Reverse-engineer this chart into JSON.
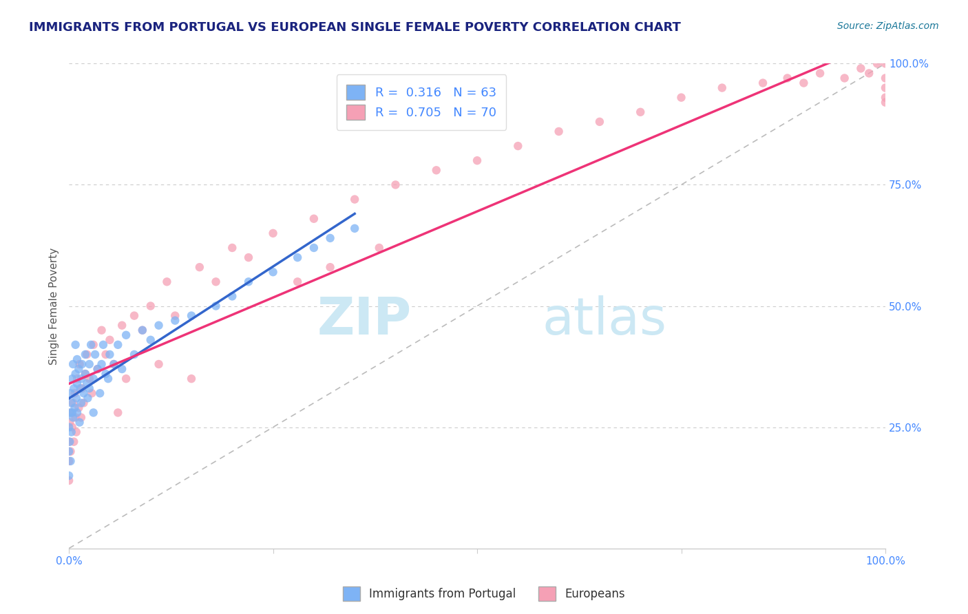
{
  "title": "IMMIGRANTS FROM PORTUGAL VS EUROPEAN SINGLE FEMALE POVERTY CORRELATION CHART",
  "source": "Source: ZipAtlas.com",
  "ylabel": "Single Female Poverty",
  "legend_label1": "Immigrants from Portugal",
  "legend_label2": "Europeans",
  "R1": 0.316,
  "N1": 63,
  "R2": 0.705,
  "N2": 70,
  "color1": "#7eb3f5",
  "color2": "#f5a0b5",
  "regression_color1": "#3366cc",
  "regression_color2": "#ee3377",
  "title_color": "#1a237e",
  "source_color": "#1a7799",
  "axis_label_color": "#4488ff",
  "watermark_color": "#cce8f4",
  "background_color": "#ffffff",
  "blue_x": [
    0.0,
    0.0,
    0.0,
    0.001,
    0.001,
    0.002,
    0.002,
    0.003,
    0.003,
    0.004,
    0.004,
    0.005,
    0.005,
    0.006,
    0.007,
    0.008,
    0.008,
    0.009,
    0.01,
    0.01,
    0.01,
    0.012,
    0.013,
    0.014,
    0.015,
    0.015,
    0.016,
    0.018,
    0.02,
    0.02,
    0.022,
    0.023,
    0.025,
    0.025,
    0.027,
    0.03,
    0.03,
    0.032,
    0.035,
    0.038,
    0.04,
    0.042,
    0.045,
    0.048,
    0.05,
    0.055,
    0.06,
    0.065,
    0.07,
    0.08,
    0.09,
    0.1,
    0.11,
    0.13,
    0.15,
    0.18,
    0.2,
    0.22,
    0.25,
    0.28,
    0.3,
    0.32,
    0.35
  ],
  "blue_y": [
    0.25,
    0.2,
    0.15,
    0.28,
    0.22,
    0.32,
    0.18,
    0.3,
    0.24,
    0.35,
    0.28,
    0.38,
    0.27,
    0.33,
    0.29,
    0.36,
    0.42,
    0.31,
    0.34,
    0.28,
    0.39,
    0.37,
    0.26,
    0.33,
    0.3,
    0.35,
    0.38,
    0.32,
    0.36,
    0.4,
    0.34,
    0.31,
    0.38,
    0.33,
    0.42,
    0.35,
    0.28,
    0.4,
    0.37,
    0.32,
    0.38,
    0.42,
    0.36,
    0.35,
    0.4,
    0.38,
    0.42,
    0.37,
    0.44,
    0.4,
    0.45,
    0.43,
    0.46,
    0.47,
    0.48,
    0.5,
    0.52,
    0.55,
    0.57,
    0.6,
    0.62,
    0.64,
    0.66
  ],
  "pink_x": [
    0.0,
    0.0,
    0.0,
    0.001,
    0.002,
    0.003,
    0.004,
    0.005,
    0.006,
    0.007,
    0.008,
    0.009,
    0.01,
    0.012,
    0.013,
    0.015,
    0.016,
    0.018,
    0.02,
    0.022,
    0.025,
    0.028,
    0.03,
    0.035,
    0.04,
    0.045,
    0.05,
    0.055,
    0.06,
    0.065,
    0.07,
    0.08,
    0.09,
    0.1,
    0.11,
    0.12,
    0.13,
    0.15,
    0.16,
    0.18,
    0.2,
    0.22,
    0.25,
    0.28,
    0.3,
    0.32,
    0.35,
    0.38,
    0.4,
    0.45,
    0.5,
    0.55,
    0.6,
    0.65,
    0.7,
    0.75,
    0.8,
    0.85,
    0.88,
    0.9,
    0.92,
    0.95,
    0.97,
    0.98,
    0.99,
    1.0,
    1.0,
    1.0,
    1.0,
    1.0
  ],
  "pink_y": [
    0.22,
    0.18,
    0.14,
    0.26,
    0.2,
    0.28,
    0.25,
    0.3,
    0.22,
    0.32,
    0.27,
    0.24,
    0.35,
    0.29,
    0.38,
    0.27,
    0.33,
    0.3,
    0.36,
    0.4,
    0.35,
    0.32,
    0.42,
    0.37,
    0.45,
    0.4,
    0.43,
    0.38,
    0.28,
    0.46,
    0.35,
    0.48,
    0.45,
    0.5,
    0.38,
    0.55,
    0.48,
    0.35,
    0.58,
    0.55,
    0.62,
    0.6,
    0.65,
    0.55,
    0.68,
    0.58,
    0.72,
    0.62,
    0.75,
    0.78,
    0.8,
    0.83,
    0.86,
    0.88,
    0.9,
    0.93,
    0.95,
    0.96,
    0.97,
    0.96,
    0.98,
    0.97,
    0.99,
    0.98,
    1.0,
    0.97,
    0.95,
    0.93,
    0.92,
    1.0
  ]
}
